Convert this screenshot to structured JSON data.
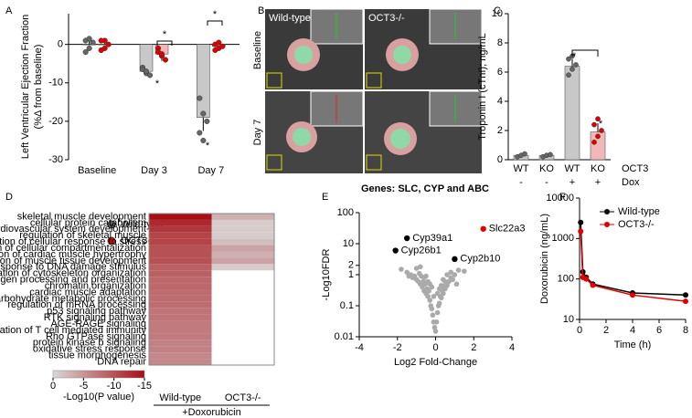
{
  "chart_data": [
    {
      "panel": "A",
      "type": "bar",
      "ylabel": [
        "Left Ventricular Ejection Fraction",
        "(%Δ from baseline)"
      ],
      "categories": [
        "Baseline",
        "Day 3",
        "Day 7"
      ],
      "series": [
        {
          "name": "Wild-type",
          "color": "#c8c8c8",
          "point_color": "#666666",
          "values": [
            0,
            -7,
            -19
          ],
          "errors": [
            1.5,
            1.2,
            3.5
          ],
          "points": [
            [
              1,
              -1,
              0.5,
              -2,
              1.5
            ],
            [
              -6,
              -7.5,
              -8,
              -6.5,
              -7
            ],
            [
              -14,
              -18,
              -20,
              -23,
              -25
            ]
          ]
        },
        {
          "name": "OCT3-/-",
          "color": "#f2b8b8",
          "point_color": "#e00000",
          "values": [
            0,
            -2.5,
            -0.5
          ],
          "errors": [
            1.5,
            1.8,
            0.8
          ],
          "points": [
            [
              1,
              -1,
              0,
              -1.5,
              1
            ],
            [
              -1,
              -3,
              -4,
              -2,
              -2.5
            ],
            [
              0,
              -1,
              -0.5,
              -1.5,
              0.5
            ]
          ]
        }
      ],
      "ylim": [
        -30,
        8
      ],
      "yticks": [
        0,
        -10,
        -20,
        -30
      ],
      "annotations": [
        "*",
        "*",
        "*",
        "*"
      ]
    },
    {
      "panel": "B",
      "type": "image",
      "columns": [
        "Wild-type",
        "OCT3-/-"
      ],
      "rows": [
        "Baseline",
        "Day 7"
      ]
    },
    {
      "panel": "C",
      "type": "bar",
      "ylabel": "Troponin I (cTnI); ng/mL",
      "categories": [
        "WT",
        "KO",
        "WT",
        "KO"
      ],
      "categories2": [
        "-",
        "-",
        "+",
        "+"
      ],
      "factors": [
        "OCT3",
        "Dox"
      ],
      "values": [
        0.3,
        0.3,
        6.4,
        1.9
      ],
      "errors": [
        0.1,
        0.1,
        0.5,
        0.6
      ],
      "colors": [
        "#c8c8c8",
        "#c8c8c8",
        "#c8c8c8",
        "#f2b8b8"
      ],
      "point_colors": [
        "#666666",
        "#666666",
        "#666666",
        "#e00000"
      ],
      "points": [
        [
          0.2,
          0.3,
          0.4
        ],
        [
          0.2,
          0.3,
          0.35
        ],
        [
          5.8,
          6.2,
          6.5,
          6.9,
          7.1
        ],
        [
          1.2,
          1.6,
          2.0,
          2.4,
          2.8
        ]
      ],
      "ylim": [
        0,
        10
      ],
      "yticks": [
        0,
        2,
        4,
        6,
        8,
        10
      ],
      "annotations": [
        "*",
        "*"
      ]
    },
    {
      "panel": "D",
      "type": "heatmap",
      "rows": [
        "skeletal muscle development",
        "cellular protein catabolism",
        "cardiovascular system development",
        "regulation of skeletal muscle",
        "regulation of cellular response to stress",
        "regulation of cellular compartmentalization",
        "regulation of cardiac muscle hypertrophy",
        "regulation of muscle tissue development",
        "cellular response to DNA damage stimulus",
        "regulation of cytoskeleton organization",
        "antigen processing and presentation",
        "chromatin organization",
        "cardiac muscle adaptation",
        "cellular carbohydrate metabolic processing",
        "regulation of mRNA processing",
        "p53 signaling pathway",
        "RTK signaling pathway",
        "AGE-RAGE signaling",
        "regulation of T cell mediated immunity",
        "Rho GTPase signaling",
        "protein kinase b signaling",
        "oxidative stress response",
        "tissue morphogenesis",
        "DNA repair"
      ],
      "columns": [
        "Wild-type",
        "OCT3-/-"
      ],
      "xlabel": "+Doxorubicin",
      "values": [
        [
          -15,
          -3
        ],
        [
          -13,
          -1
        ],
        [
          -12,
          -1
        ],
        [
          -11,
          -1
        ],
        [
          -11,
          -2
        ],
        [
          -10,
          -4
        ],
        [
          -10,
          -3
        ],
        [
          -10,
          -4
        ],
        [
          -9,
          -1
        ],
        [
          -9,
          null
        ],
        [
          -8.5,
          null
        ],
        [
          -8.5,
          null
        ],
        [
          -8,
          null
        ],
        [
          -8,
          null
        ],
        [
          -8,
          null
        ],
        [
          -7.5,
          null
        ],
        [
          -7.5,
          null
        ],
        [
          -7,
          null
        ],
        [
          -7,
          null
        ],
        [
          -7,
          null
        ],
        [
          -6.5,
          null
        ],
        [
          -6.5,
          null
        ],
        [
          -6,
          null
        ],
        [
          -6,
          null
        ]
      ],
      "clim": [
        0,
        -15
      ],
      "cticks": [
        0,
        -5,
        -10,
        -15
      ],
      "clabel": "-Log10(P value)"
    },
    {
      "panel": "E",
      "type": "scatter",
      "title": "Genes: SLC, CYP and ABC",
      "xlabel": "Log2 Fold-Change",
      "ylabel": "-Log10FDR",
      "x": [
        -1.8,
        -1.5,
        -1.3,
        -1.2,
        -1.1,
        -1.0,
        -0.9,
        -0.85,
        -0.8,
        -0.75,
        -0.7,
        -0.65,
        -0.6,
        -0.55,
        -0.5,
        -0.45,
        -0.4,
        -0.35,
        -0.3,
        -0.25,
        -0.2,
        -0.15,
        -0.1,
        -0.05,
        0,
        0.05,
        0.1,
        0.15,
        0.2,
        0.25,
        0.3,
        0.35,
        0.4,
        0.45,
        0.5,
        0.55,
        0.6,
        0.7,
        0.8,
        0.9,
        1.0,
        1.2,
        1.5,
        -0.6,
        -0.4,
        -0.2,
        0.2,
        0.4,
        -1.0,
        0.6,
        -0.3,
        0.1,
        -0.1,
        0.3,
        -0.5,
        0.5,
        -0.8,
        0.8,
        -1.4,
        1.1
      ],
      "y": [
        1.5,
        1.2,
        1.0,
        0.8,
        0.9,
        0.7,
        0.6,
        1.1,
        0.5,
        0.9,
        0.4,
        0.6,
        0.3,
        0.5,
        0.25,
        0.35,
        0.2,
        0.3,
        0.15,
        0.1,
        0.08,
        0.05,
        0.03,
        0.02,
        0.015,
        0.03,
        0.06,
        0.1,
        0.12,
        0.2,
        0.18,
        0.3,
        0.25,
        0.4,
        0.35,
        0.5,
        0.45,
        0.6,
        0.8,
        0.7,
        1.0,
        1.4,
        1.3,
        0.8,
        0.6,
        0.4,
        0.35,
        0.7,
        1.6,
        1.0,
        0.5,
        0.25,
        0.2,
        0.45,
        0.9,
        0.6,
        1.8,
        1.2,
        0.9,
        0.5
      ],
      "color": "#aaaaaa",
      "labeled": [
        {
          "label": "Slc22a3",
          "x": 2.5,
          "y": 30,
          "color": "#e00000"
        },
        {
          "label": "Cyp39a1",
          "x": -1.5,
          "y": 15,
          "color": "#000000"
        },
        {
          "label": "Cyp26b1",
          "x": -2.1,
          "y": 6,
          "color": "#000000"
        },
        {
          "label": "Cyp2b10",
          "x": 1.0,
          "y": 3.2,
          "color": "#000000"
        }
      ],
      "xlim": [
        -4,
        4
      ],
      "xticks": [
        -4,
        -2,
        0,
        2,
        4
      ],
      "ylim": [
        0.01,
        100
      ],
      "yticks": [
        0.01,
        0.1,
        1,
        2,
        10,
        100
      ],
      "log_y": true
    },
    {
      "panel": "F",
      "type": "line",
      "xlabel": "Time (h)",
      "ylabel": "Doxorubicin (ng/mL)",
      "x": [
        0.083,
        0.25,
        0.5,
        1,
        4,
        8
      ],
      "series": [
        {
          "name": "Wild-type",
          "color": "#000000",
          "values": [
            2500,
            150,
            110,
            75,
            45,
            40
          ]
        },
        {
          "name": "OCT3-/-",
          "color": "#e00000",
          "values": [
            1500,
            110,
            100,
            70,
            40,
            28
          ]
        }
      ],
      "xlim": [
        0,
        8
      ],
      "xticks": [
        0,
        2,
        4,
        6,
        8
      ],
      "ylim": [
        10,
        10000
      ],
      "yticks": [
        10,
        100,
        1000,
        10000
      ],
      "log_y": true
    }
  ]
}
